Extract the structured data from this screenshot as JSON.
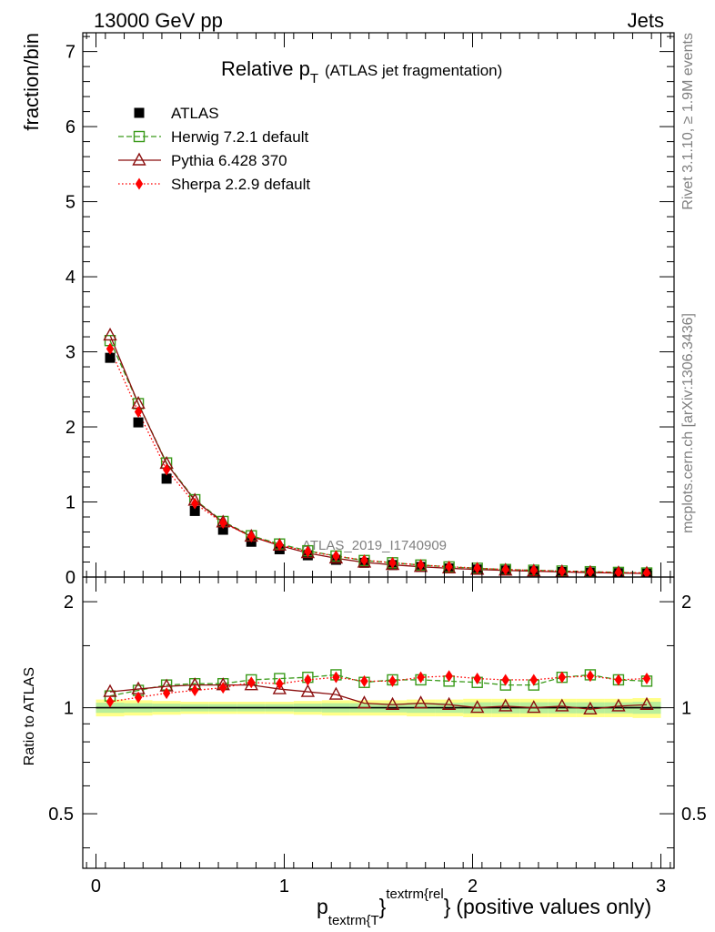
{
  "header": {
    "left": "13000 GeV pp",
    "right": "Jets"
  },
  "side": {
    "top": "Rivet 3.1.10, ≥ 1.9M events",
    "bottom": "mcplots.cern.ch [arXiv:1306.3436]"
  },
  "chart_data": {
    "type": "line",
    "title_main": "Relative p",
    "title_sub": "T",
    "title_paren": "(ATLAS jet fragmentation)",
    "watermark": "ATLAS_2019_I1740909",
    "ylabel": "fraction/bin",
    "ratio_ylabel": "Ratio to ATLAS",
    "xlabel": {
      "p": "p",
      "sub": "textrm{T",
      "brace1": "}",
      "sup": "textrm{rel",
      "brace2": "}",
      "rest": "(positive values only)"
    },
    "xlim": [
      -0.07,
      3.07
    ],
    "ylim": [
      0,
      7.25
    ],
    "ratio_ylim": [
      0.35,
      2.35
    ],
    "ratio_log": true,
    "x_ticks": [
      "0",
      "1",
      "2",
      "3"
    ],
    "y_ticks": [
      "0",
      "1",
      "2",
      "3",
      "4",
      "5",
      "6",
      "7"
    ],
    "ratio_ticks": [
      "0.5",
      "1",
      "2"
    ],
    "x": [
      0.075,
      0.225,
      0.375,
      0.525,
      0.675,
      0.825,
      0.975,
      1.125,
      1.275,
      1.425,
      1.575,
      1.725,
      1.875,
      2.025,
      2.175,
      2.325,
      2.475,
      2.625,
      2.775,
      2.925
    ],
    "ratio_band": [
      0.055,
      0.05,
      0.045,
      0.04,
      0.04,
      0.04,
      0.04,
      0.045,
      0.05,
      0.05,
      0.05,
      0.055,
      0.055,
      0.06,
      0.06,
      0.06,
      0.06,
      0.06,
      0.06,
      0.065
    ],
    "series": [
      {
        "name": "ATLAS",
        "marker": "square-filled",
        "color": "#000000",
        "values": [
          2.92,
          2.06,
          1.31,
          0.88,
          0.63,
          0.47,
          0.37,
          0.29,
          0.23,
          0.19,
          0.16,
          0.135,
          0.115,
          0.1,
          0.088,
          0.077,
          0.067,
          0.059,
          0.052,
          0.046
        ]
      },
      {
        "name": "Herwig 7.2.1 default",
        "marker": "square-open",
        "color": "#3a9a1a",
        "values": [
          3.15,
          2.31,
          1.52,
          1.03,
          0.74,
          0.55,
          0.44,
          0.35,
          0.28,
          0.22,
          0.19,
          0.16,
          0.135,
          0.117,
          0.1,
          0.09,
          0.08,
          0.071,
          0.062,
          0.054
        ]
      },
      {
        "name": "Pythia 6.428 370",
        "marker": "triangle-open",
        "color": "#8b0f0f",
        "values": [
          3.22,
          2.31,
          1.51,
          1.02,
          0.73,
          0.54,
          0.42,
          0.32,
          0.25,
          0.195,
          0.163,
          0.137,
          0.117,
          0.1,
          0.088,
          0.077,
          0.068,
          0.059,
          0.053,
          0.047
        ]
      },
      {
        "name": "Sherpa 2.2.9 default",
        "marker": "diamond-filled",
        "color": "#ff0000",
        "values": [
          3.04,
          2.2,
          1.43,
          0.98,
          0.72,
          0.54,
          0.43,
          0.34,
          0.28,
          0.225,
          0.19,
          0.16,
          0.138,
          0.119,
          0.1,
          0.089,
          0.078,
          0.07,
          0.061,
          0.054
        ]
      }
    ],
    "ratios": {
      "Herwig 7.2.1 default": [
        1.08,
        1.12,
        1.16,
        1.17,
        1.17,
        1.2,
        1.21,
        1.22,
        1.24,
        1.18,
        1.2,
        1.2,
        1.19,
        1.18,
        1.16,
        1.16,
        1.22,
        1.24,
        1.2,
        1.19
      ],
      "Pythia 6.428 370": [
        1.11,
        1.13,
        1.15,
        1.16,
        1.16,
        1.16,
        1.13,
        1.11,
        1.09,
        1.03,
        1.02,
        1.03,
        1.02,
        1.0,
        1.01,
        1.0,
        1.01,
        0.99,
        1.01,
        1.02
      ],
      "Sherpa 2.2.9 default": [
        1.04,
        1.07,
        1.1,
        1.12,
        1.14,
        1.18,
        1.17,
        1.2,
        1.22,
        1.19,
        1.19,
        1.22,
        1.23,
        1.21,
        1.2,
        1.2,
        1.22,
        1.23,
        1.2,
        1.21
      ]
    }
  }
}
